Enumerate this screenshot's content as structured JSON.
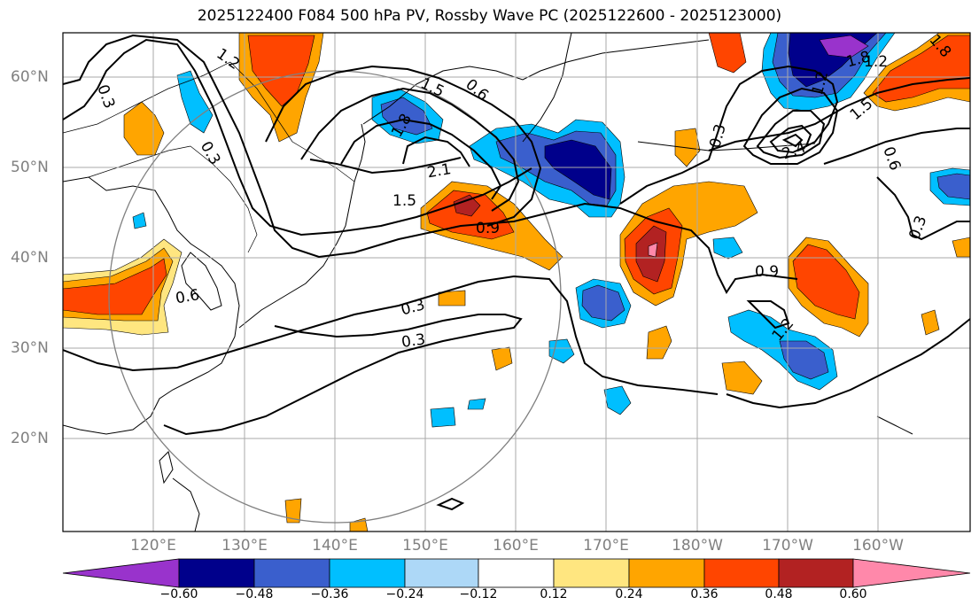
{
  "title": "2025122400 F084 500 hPa PV, Rossby Wave PC (2025122600 - 2025123000)",
  "map": {
    "latitude_labels": [
      "60°N",
      "50°N",
      "40°N",
      "30°N",
      "20°N"
    ],
    "longitude_labels": [
      "120°E",
      "130°E",
      "140°E",
      "150°E",
      "160°E",
      "170°E",
      "180°W",
      "170°W",
      "160°W"
    ],
    "contour_labels": [
      "1.2",
      "0.6",
      "1.5",
      "1.8",
      "2.1",
      "1.5",
      "0.9",
      "0.3",
      "0.3",
      "0.6",
      "0.3",
      "0.3",
      "1.8",
      "0.3",
      "2.4",
      "1.2",
      "0.6",
      "0.3",
      "0.9",
      "1.2",
      "1.5",
      "1.8",
      "1.2"
    ]
  },
  "colorbar": {
    "ticks": [
      "−0.60",
      "−0.48",
      "−0.36",
      "−0.24",
      "−0.12",
      "0.12",
      "0.24",
      "0.36",
      "0.48",
      "0.60"
    ],
    "colors": [
      "#9933cc",
      "#00008b",
      "#3a5fcd",
      "#00bfff",
      "#add8f7",
      "#ffffff",
      "#ffe680",
      "#ffa500",
      "#ff4500",
      "#b22222",
      "#ff88aa"
    ]
  }
}
